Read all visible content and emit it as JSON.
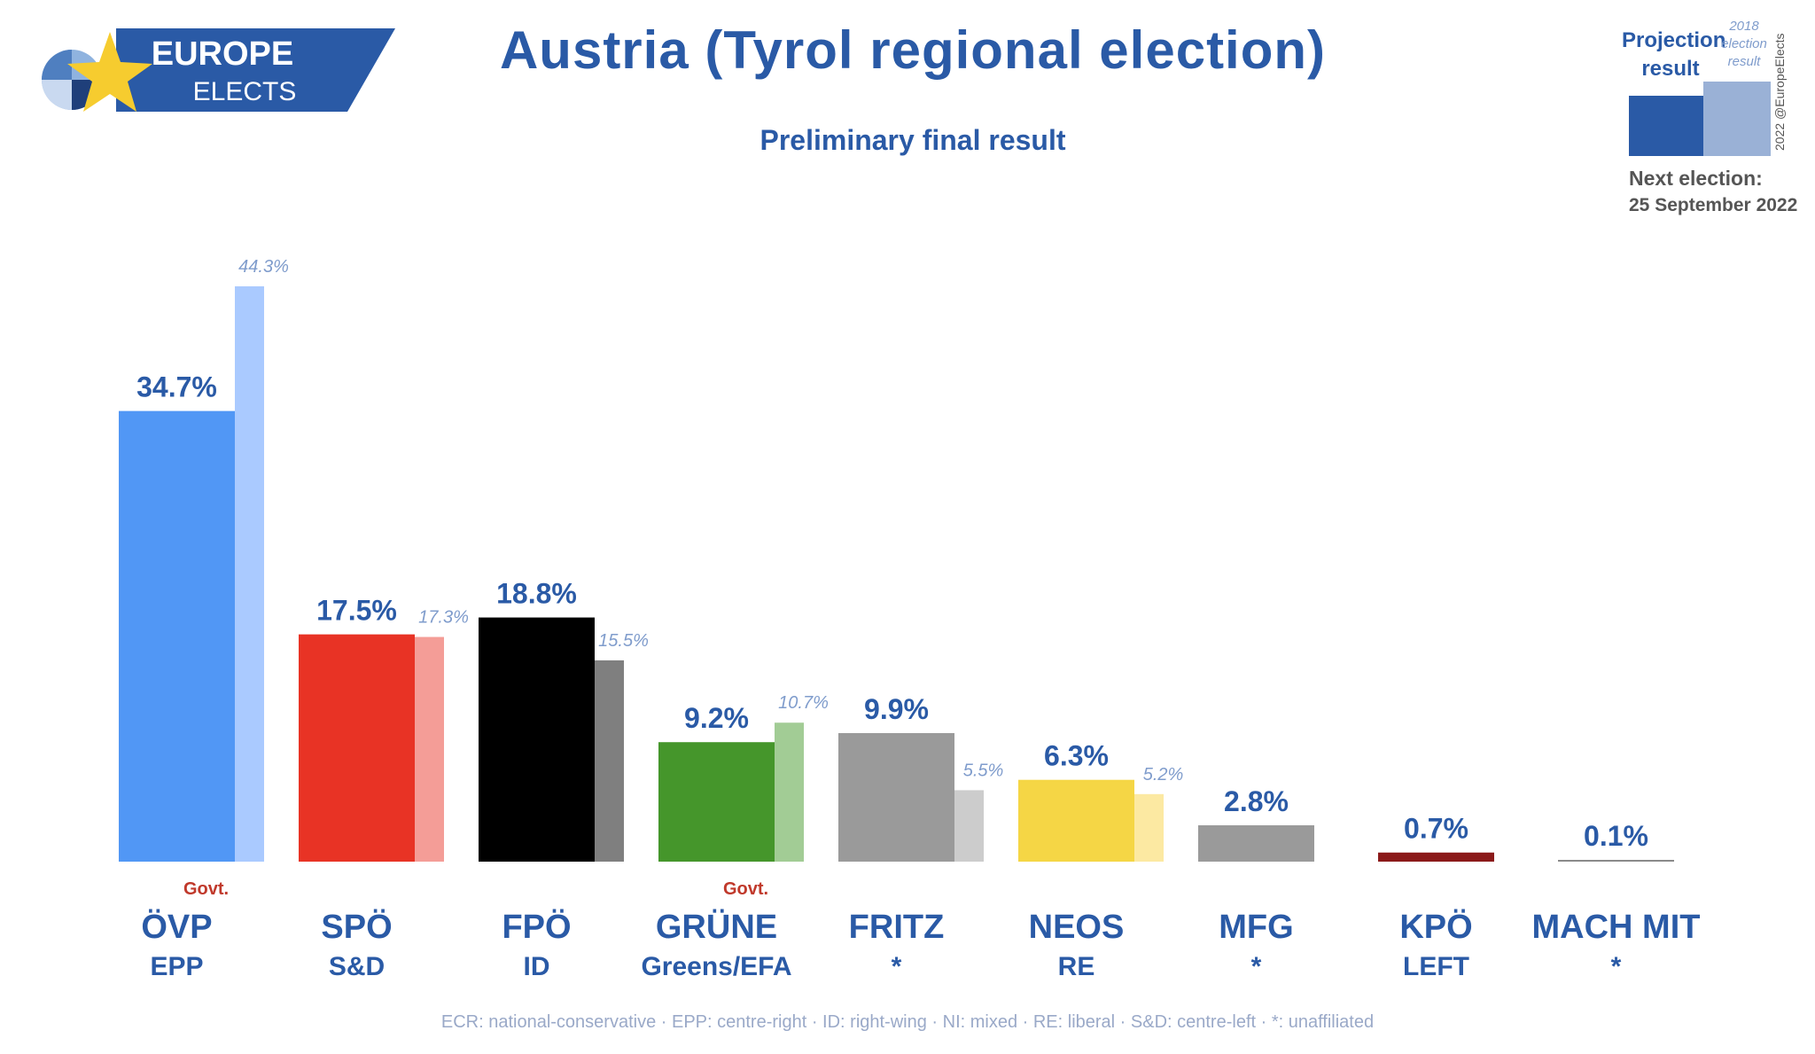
{
  "brand": {
    "line1": "EUROPE",
    "line2": "ELECTS"
  },
  "header": {
    "title": "Austria (Tyrol regional election)",
    "subtitle": "Preliminary final result"
  },
  "legend": {
    "projection_label": "Projection result",
    "previous_label": "2018 election result",
    "copyright": "2022 @EuropeElects",
    "next_label": "Next election:",
    "next_date": "25 September 2022",
    "projection_color": "#2a5aa6",
    "previous_color": "#9ab1d6"
  },
  "footnote": "ECR: national-conservative · EPP: centre-right · ID: right-wing · NI: mixed · RE: liberal · S&D: centre-left · *: unaffiliated",
  "chart_data": {
    "type": "bar",
    "categories": [
      "ÖVP",
      "SPÖ",
      "FPÖ",
      "GRÜNE",
      "FRITZ",
      "NEOS",
      "MFG",
      "KPÖ",
      "MACH MIT"
    ],
    "groups": [
      "EPP",
      "S&D",
      "ID",
      "Greens/EFA",
      "*",
      "RE",
      "*",
      "LEFT",
      "*"
    ],
    "govt": [
      true,
      false,
      false,
      true,
      false,
      false,
      false,
      false,
      false
    ],
    "govt_label": "Govt.",
    "series": [
      {
        "name": "Projection result",
        "values": [
          34.7,
          17.5,
          18.8,
          9.2,
          9.9,
          6.3,
          2.8,
          0.7,
          0.1
        ],
        "labels": [
          "34.7%",
          "17.5%",
          "18.8%",
          "9.2%",
          "9.9%",
          "6.3%",
          "2.8%",
          "0.7%",
          "0.1%"
        ]
      },
      {
        "name": "2018 election result",
        "values": [
          44.3,
          17.3,
          15.5,
          10.7,
          5.5,
          5.2,
          null,
          null,
          null
        ],
        "labels": [
          "44.3%",
          "17.3%",
          "15.5%",
          "10.7%",
          "5.5%",
          "5.2%",
          "",
          "",
          ""
        ]
      }
    ],
    "colors": [
      "#5197f5",
      "#e83325",
      "#000000",
      "#45962b",
      "#9a9a9a",
      "#f5d645",
      "#9a9a9a",
      "#8b1a1a",
      "#8a8a8a"
    ],
    "prev_colors": [
      "#aacaff",
      "#f49d97",
      "#7f7f7f",
      "#a2cc95",
      "#cccccc",
      "#fce9a2",
      "#cccccc",
      "#c98a8a",
      "#cccccc"
    ],
    "ylim": [
      0,
      50
    ],
    "grid": false
  }
}
